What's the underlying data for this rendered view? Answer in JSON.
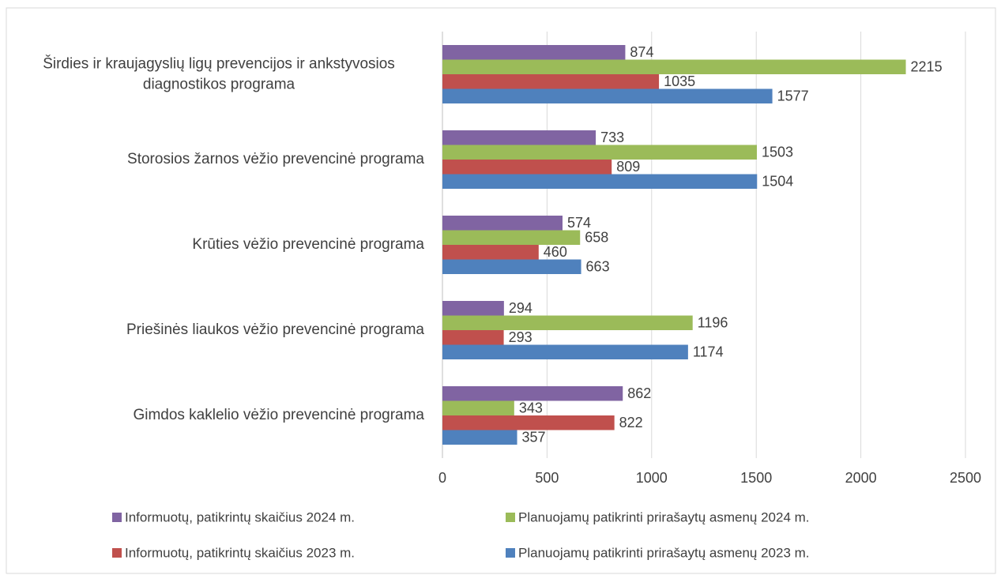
{
  "chart_data": {
    "type": "bar",
    "orientation": "horizontal",
    "categories": [
      "Širdies ir kraujagyslių ligų prevencijos ir ankstyvosios diagnostikos programa",
      "Storosios žarnos vėžio prevencinė programa",
      "Krūties vėžio prevencinė programa",
      "Priešinės liaukos vėžio prevencinė programa",
      "Gimdos kaklelio vėžio prevencinė programa"
    ],
    "series": [
      {
        "name": "Informuotų, patikrintų skaičius 2024 m.",
        "color": "#8064a2",
        "values": [
          874,
          733,
          574,
          294,
          862
        ]
      },
      {
        "name": "Planuojamų patikrinti prirašaytų asmenų 2024 m.",
        "color": "#9bbb59",
        "values": [
          2215,
          1503,
          658,
          1196,
          343
        ]
      },
      {
        "name": "Informuotų, patikrintų skaičius 2023 m.",
        "color": "#c0504d",
        "values": [
          1035,
          809,
          460,
          293,
          822
        ]
      },
      {
        "name": "Planuojamų patikrinti prirašaytų asmenų 2023 m.",
        "color": "#4f81bd",
        "values": [
          1577,
          1504,
          663,
          1174,
          357
        ]
      }
    ],
    "xlim": [
      0,
      2500
    ],
    "xticks": [
      0,
      500,
      1000,
      1500,
      2000,
      2500
    ],
    "grid": true
  }
}
